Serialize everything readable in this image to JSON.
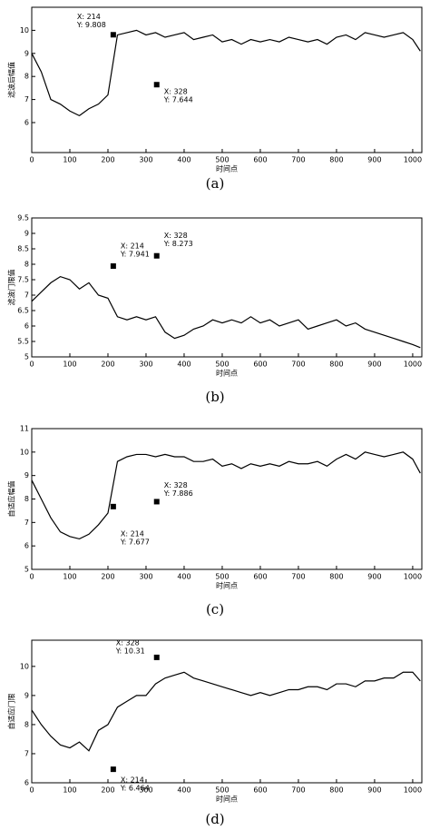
{
  "chart_data": [
    {
      "type": "line",
      "caption": "(a)",
      "ylabel": "滤波后幅值",
      "xlabel": "时间点",
      "x": [
        0,
        25,
        50,
        75,
        100,
        125,
        150,
        175,
        200,
        225,
        250,
        275,
        300,
        325,
        350,
        375,
        400,
        425,
        450,
        475,
        500,
        525,
        550,
        575,
        600,
        625,
        650,
        675,
        700,
        725,
        750,
        775,
        800,
        825,
        850,
        875,
        900,
        925,
        950,
        975,
        1000,
        1020
      ],
      "series": [
        {
          "color": "#000000",
          "values": [
            9,
            8.2,
            7,
            6.8,
            6.5,
            6.3,
            6.6,
            6.8,
            7.2,
            9.8,
            9.9,
            10,
            9.8,
            9.9,
            9.7,
            9.8,
            9.9,
            9.6,
            9.7,
            9.8,
            9.5,
            9.6,
            9.4,
            9.6,
            9.5,
            9.6,
            9.5,
            9.7,
            9.6,
            9.5,
            9.6,
            9.4,
            9.7,
            9.8,
            9.6,
            9.9,
            9.8,
            9.7,
            9.8,
            9.9,
            9.6,
            9.1
          ]
        }
      ],
      "annotations": [
        {
          "x": 214,
          "y": 9.808,
          "label_x": "X: 214",
          "label_y": "Y: 9.808"
        },
        {
          "x": 328,
          "y": 7.644,
          "label_x": "X: 328",
          "label_y": "Y: 7.644"
        }
      ],
      "xlim": [
        0,
        1024
      ],
      "xticks": [
        0,
        100,
        200,
        300,
        400,
        500,
        600,
        700,
        800,
        900,
        1000
      ],
      "ylim": [
        4.7,
        11
      ],
      "yticks": [
        6,
        7,
        8,
        9,
        10
      ]
    },
    {
      "type": "line",
      "caption": "(b)",
      "ylabel": "滤波门限值",
      "xlabel": "时间点",
      "x": [
        0,
        25,
        50,
        75,
        100,
        125,
        150,
        175,
        200,
        225,
        250,
        275,
        300,
        325,
        350,
        375,
        400,
        425,
        450,
        475,
        500,
        525,
        550,
        575,
        600,
        625,
        650,
        675,
        700,
        725,
        750,
        775,
        800,
        825,
        850,
        875,
        900,
        925,
        950,
        975,
        1000,
        1020
      ],
      "series": [
        {
          "color": "#000000",
          "values": [
            6.8,
            7.1,
            7.4,
            7.6,
            7.5,
            7.2,
            7.4,
            7,
            6.9,
            6.3,
            6.2,
            6.3,
            6.2,
            6.3,
            5.8,
            5.6,
            5.7,
            5.9,
            6,
            6.2,
            6.1,
            6.2,
            6.1,
            6.3,
            6.1,
            6.2,
            6,
            6.1,
            6.2,
            5.9,
            6,
            6.1,
            6.2,
            6,
            6.1,
            5.9,
            5.8,
            5.7,
            5.6,
            5.5,
            5.4,
            5.3
          ]
        }
      ],
      "annotations": [
        {
          "x": 214,
          "y": 7.941,
          "label_x": "X: 214",
          "label_y": "Y: 7.941"
        },
        {
          "x": 328,
          "y": 8.273,
          "label_x": "X: 328",
          "label_y": "Y: 8.273"
        }
      ],
      "xlim": [
        0,
        1024
      ],
      "xticks": [
        0,
        100,
        200,
        300,
        400,
        500,
        600,
        700,
        800,
        900,
        1000
      ],
      "ylim": [
        5,
        9.5
      ],
      "yticks": [
        5,
        5.5,
        6,
        6.5,
        7,
        7.5,
        8,
        8.5,
        9,
        9.5
      ]
    },
    {
      "type": "line",
      "caption": "(c)",
      "ylabel": "自适应幅值",
      "xlabel": "时间点",
      "x": [
        0,
        25,
        50,
        75,
        100,
        125,
        150,
        175,
        200,
        225,
        250,
        275,
        300,
        325,
        350,
        375,
        400,
        425,
        450,
        475,
        500,
        525,
        550,
        575,
        600,
        625,
        650,
        675,
        700,
        725,
        750,
        775,
        800,
        825,
        850,
        875,
        900,
        925,
        950,
        975,
        1000,
        1020
      ],
      "series": [
        {
          "color": "#000000",
          "values": [
            8.8,
            8,
            7.2,
            6.6,
            6.4,
            6.3,
            6.5,
            6.9,
            7.4,
            9.6,
            9.8,
            9.9,
            9.9,
            9.8,
            9.9,
            9.8,
            9.8,
            9.6,
            9.6,
            9.7,
            9.4,
            9.5,
            9.3,
            9.5,
            9.4,
            9.5,
            9.4,
            9.6,
            9.5,
            9.5,
            9.6,
            9.4,
            9.7,
            9.9,
            9.7,
            10,
            9.9,
            9.8,
            9.9,
            10,
            9.7,
            9.1
          ]
        }
      ],
      "annotations": [
        {
          "x": 214,
          "y": 7.677,
          "label_x": "X: 214",
          "label_y": "Y: 7.677"
        },
        {
          "x": 328,
          "y": 7.886,
          "label_x": "X: 328",
          "label_y": "Y: 7.886"
        }
      ],
      "xlim": [
        0,
        1024
      ],
      "xticks": [
        0,
        100,
        200,
        300,
        400,
        500,
        600,
        700,
        800,
        900,
        1000
      ],
      "ylim": [
        5,
        11
      ],
      "yticks": [
        5,
        6,
        7,
        8,
        9,
        10,
        11
      ]
    },
    {
      "type": "line",
      "caption": "(d)",
      "ylabel": "自适应门限",
      "xlabel": "时间点",
      "x": [
        0,
        25,
        50,
        75,
        100,
        125,
        150,
        175,
        200,
        225,
        250,
        275,
        300,
        325,
        350,
        375,
        400,
        425,
        450,
        475,
        500,
        525,
        550,
        575,
        600,
        625,
        650,
        675,
        700,
        725,
        750,
        775,
        800,
        825,
        850,
        875,
        900,
        925,
        950,
        975,
        1000,
        1020
      ],
      "series": [
        {
          "color": "#000000",
          "values": [
            8.5,
            8,
            7.6,
            7.3,
            7.2,
            7.4,
            7.1,
            7.8,
            8,
            8.6,
            8.8,
            9,
            9,
            9.4,
            9.6,
            9.7,
            9.8,
            9.6,
            9.5,
            9.4,
            9.3,
            9.2,
            9.1,
            9,
            9.1,
            9,
            9.1,
            9.2,
            9.2,
            9.3,
            9.3,
            9.2,
            9.4,
            9.4,
            9.3,
            9.5,
            9.5,
            9.6,
            9.6,
            9.8,
            9.8,
            9.5
          ]
        }
      ],
      "annotations": [
        {
          "x": 214,
          "y": 6.464,
          "label_x": "X: 214",
          "label_y": "Y: 6.464"
        },
        {
          "x": 328,
          "y": 10.31,
          "label_x": "X: 328",
          "label_y": "Y: 10.31"
        }
      ],
      "xlim": [
        0,
        1024
      ],
      "xticks": [
        0,
        100,
        200,
        300,
        400,
        500,
        600,
        700,
        800,
        900,
        1000
      ],
      "ylim": [
        6,
        10.9
      ],
      "yticks": [
        6,
        7,
        8,
        9,
        10
      ]
    }
  ]
}
